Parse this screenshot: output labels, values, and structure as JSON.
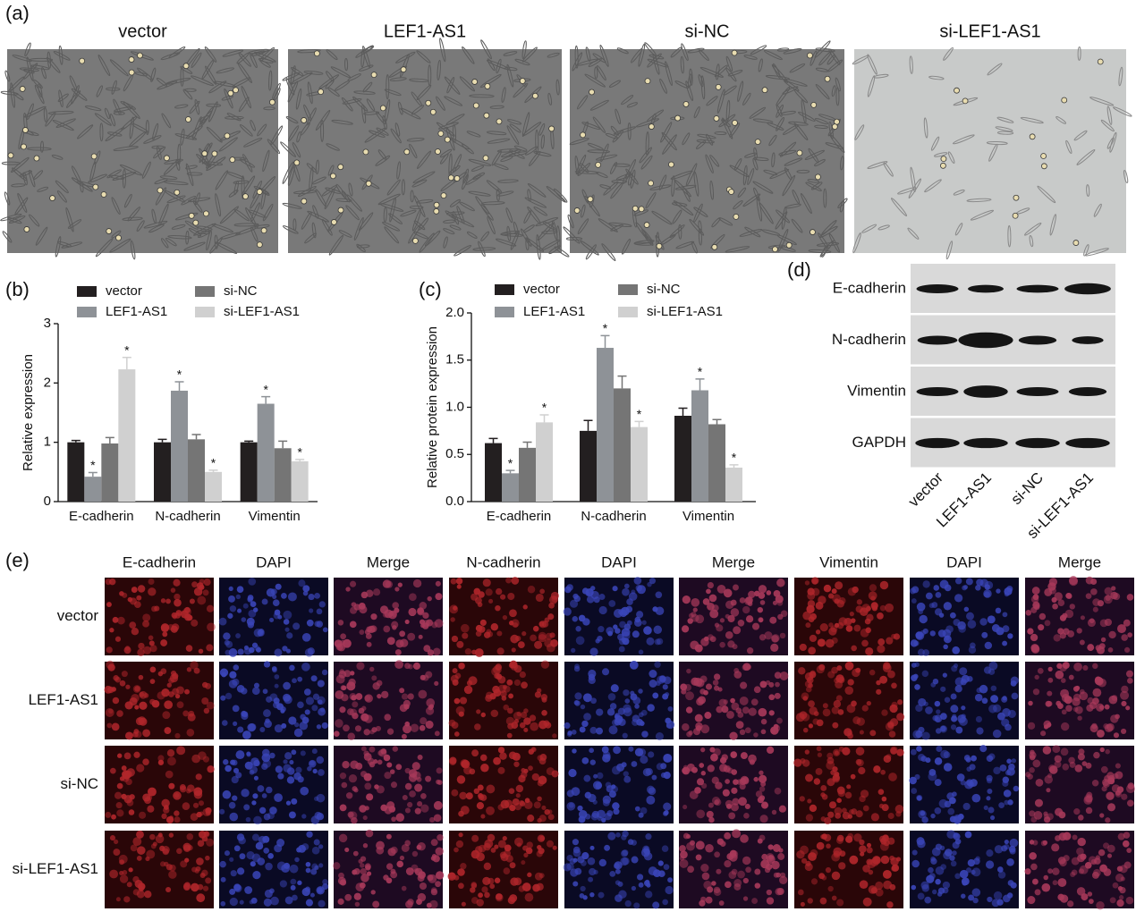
{
  "panel_a": {
    "label": "(a)",
    "titles": [
      "vector",
      "LEF1-AS1",
      "si-NC",
      "si-LEF1-AS1"
    ]
  },
  "chart_data": [
    {
      "type": "bar",
      "label": "(b)",
      "ylabel": "Relative expression",
      "categories": [
        "E-cadherin",
        "N-cadherin",
        "Vimentin"
      ],
      "series": [
        {
          "name": "vector",
          "color": "#231f20",
          "values": [
            1.0,
            1.0,
            1.0
          ],
          "errors": [
            0.03,
            0.05,
            0.02
          ]
        },
        {
          "name": "LEF1-AS1",
          "color": "#8e9297",
          "values": [
            0.42,
            1.87,
            1.65
          ],
          "errors": [
            0.07,
            0.15,
            0.12
          ],
          "marks": [
            "*",
            "*",
            "*"
          ]
        },
        {
          "name": "si-NC",
          "color": "#757575",
          "values": [
            0.98,
            1.05,
            0.9
          ],
          "errors": [
            0.1,
            0.08,
            0.12
          ]
        },
        {
          "name": "si-LEF1-AS1",
          "color": "#d0d0d0",
          "values": [
            2.23,
            0.5,
            0.68
          ],
          "errors": [
            0.2,
            0.03,
            0.03
          ],
          "marks": [
            "*",
            "*",
            "*"
          ]
        }
      ],
      "ylim": [
        0,
        3
      ],
      "yticks": [
        0,
        1,
        2,
        3
      ]
    },
    {
      "type": "bar",
      "label": "(c)",
      "ylabel": "Relative protein expression",
      "categories": [
        "E-cadherin",
        "N-cadherin",
        "Vimentin"
      ],
      "series": [
        {
          "name": "vector",
          "color": "#231f20",
          "values": [
            0.62,
            0.75,
            0.91
          ],
          "errors": [
            0.05,
            0.11,
            0.08
          ]
        },
        {
          "name": "LEF1-AS1",
          "color": "#8e9297",
          "values": [
            0.3,
            1.63,
            1.18
          ],
          "errors": [
            0.03,
            0.13,
            0.12
          ],
          "marks": [
            "*",
            "*",
            "*"
          ]
        },
        {
          "name": "si-NC",
          "color": "#757575",
          "values": [
            0.57,
            1.2,
            0.82
          ],
          "errors": [
            0.06,
            0.13,
            0.05
          ]
        },
        {
          "name": "si-LEF1-AS1",
          "color": "#d0d0d0",
          "values": [
            0.84,
            0.79,
            0.36
          ],
          "errors": [
            0.08,
            0.06,
            0.03
          ],
          "marks": [
            "*",
            "*",
            "*"
          ]
        }
      ],
      "ylim": [
        0,
        2
      ],
      "yticks": [
        {
          "value": 0,
          "label": "0.0"
        },
        0.5,
        {
          "value": 1,
          "label": "1.0"
        },
        1.5,
        {
          "value": 2,
          "label": "2.0"
        }
      ]
    }
  ],
  "panel_d": {
    "label": "(d)",
    "rows": [
      "E-cadherin",
      "N-cadherin",
      "Vimentin",
      "GAPDH"
    ],
    "lanes": [
      "vector",
      "LEF1-AS1",
      "si-NC",
      "si-LEF1-AS1"
    ]
  },
  "panel_e": {
    "label": "(e)",
    "columns": [
      "E-cadherin",
      "DAPI",
      "Merge",
      "N-cadherin",
      "DAPI",
      "Merge",
      "Vimentin",
      "DAPI",
      "Merge"
    ],
    "rows": [
      "vector",
      "LEF1-AS1",
      "si-NC",
      "si-LEF1-AS1"
    ]
  }
}
